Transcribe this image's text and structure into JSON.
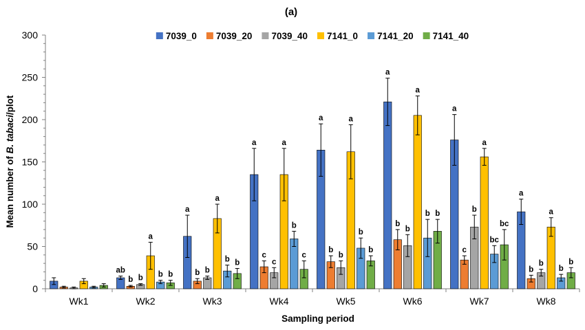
{
  "chart_data": {
    "type": "bar",
    "panel_label": "(a)",
    "xlabel": "Sampling period",
    "ylabel_prefix": "Mean number of ",
    "ylabel_italic": "B. tabaci",
    "ylabel_suffix": "/plot",
    "ylim": [
      0,
      300
    ],
    "yticks": [
      0,
      50,
      100,
      150,
      200,
      250,
      300
    ],
    "categories": [
      "Wk1",
      "Wk2",
      "Wk3",
      "Wk4",
      "Wk5",
      "Wk6",
      "Wk7",
      "Wk8"
    ],
    "legend_position": "top",
    "grid": false,
    "series": [
      {
        "name": "7039_0",
        "color": "#4472C4",
        "values": [
          9,
          13,
          62,
          135,
          164,
          221,
          176,
          91
        ],
        "errors": [
          4,
          2,
          25,
          31,
          31,
          28,
          30,
          15
        ],
        "labels": [
          "",
          "ab",
          "a",
          "a",
          "a",
          "a",
          "a",
          "a"
        ]
      },
      {
        "name": "7039_20",
        "color": "#ED7D31",
        "values": [
          2,
          3,
          9,
          26,
          32,
          58,
          34,
          12
        ],
        "errors": [
          1,
          1,
          3,
          7,
          7,
          12,
          5,
          4
        ],
        "labels": [
          "",
          "b",
          "b",
          "c",
          "b",
          "b",
          "c",
          "b"
        ]
      },
      {
        "name": "7039_40",
        "color": "#A5A5A5",
        "values": [
          1,
          5,
          13,
          19,
          25,
          51,
          73,
          19
        ],
        "errors": [
          1,
          1,
          2,
          6,
          8,
          13,
          14,
          4
        ],
        "labels": [
          "",
          "b",
          "b",
          "c",
          "b",
          "b",
          "b",
          "b"
        ]
      },
      {
        "name": "7141_0",
        "color": "#FFC000",
        "values": [
          9,
          39,
          83,
          135,
          162,
          205,
          156,
          73
        ],
        "errors": [
          3,
          16,
          17,
          31,
          32,
          23,
          10,
          11
        ],
        "labels": [
          "",
          "a",
          "a",
          "a",
          "a",
          "a",
          "a",
          "a"
        ]
      },
      {
        "name": "7141_20",
        "color": "#5B9BD5",
        "values": [
          2,
          8,
          21,
          59,
          48,
          60,
          41,
          13
        ],
        "errors": [
          1,
          2,
          7,
          9,
          12,
          22,
          10,
          4
        ],
        "labels": [
          "",
          "b",
          "b",
          "b",
          "b",
          "b",
          "bc",
          "b"
        ]
      },
      {
        "name": "7141_40",
        "color": "#70AD47",
        "values": [
          4,
          7,
          18,
          23,
          33,
          68,
          52,
          19
        ],
        "errors": [
          2,
          3,
          6,
          10,
          6,
          14,
          18,
          6
        ],
        "labels": [
          "",
          "b",
          "b",
          "c",
          "b",
          "b",
          "bc",
          "b"
        ]
      }
    ]
  }
}
